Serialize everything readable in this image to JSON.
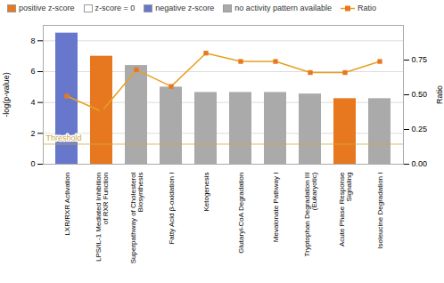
{
  "chart_data": {
    "type": "bar",
    "categories": [
      "LXR/RXR Activation",
      "LPS/IL-1 Mediated Inhibition\nof RXR Function",
      "Superpathway of Cholesterol\nBiosynthesis",
      "Fatty Acid β-oxidation I",
      "Ketogenesis",
      "Glutaryl-CoA Degradation",
      "Mevalonate Pathway I",
      "Tryptophan Degradation III\n(Eukaryotic)",
      "Acute Phase Response\nSignaling",
      "Isoleucine Degradation I"
    ],
    "series": [
      {
        "type": "bar",
        "values": [
          8.5,
          7.0,
          6.4,
          5.0,
          4.65,
          4.65,
          4.65,
          4.55,
          4.25,
          4.25
        ],
        "colors": [
          "#6677cc",
          "#e87820",
          "#aaaaaa",
          "#aaaaaa",
          "#aaaaaa",
          "#aaaaaa",
          "#aaaaaa",
          "#aaaaaa",
          "#e87820",
          "#aaaaaa"
        ]
      },
      {
        "name": "Ratio",
        "type": "line",
        "axis": "y2",
        "color": "#e8a020",
        "marker": "square",
        "marker_color": "#e87820",
        "values": [
          0.49,
          0.38,
          0.68,
          0.56,
          0.8,
          0.74,
          0.74,
          0.66,
          0.66,
          0.74
        ]
      }
    ],
    "legend_entries": [
      {
        "name": "positive z-score",
        "color": "#e87820"
      },
      {
        "name": "z-score = 0",
        "color": "#ffffff"
      },
      {
        "name": "negative z-score",
        "color": "#6677cc"
      },
      {
        "name": "no activity pattern available",
        "color": "#aaaaaa"
      }
    ],
    "legend": "upper left",
    "threshold": {
      "value": 1.3,
      "label": "Threshold",
      "color": "#ccaa44"
    },
    "ylabel": "-log(p-value)",
    "ylim": [
      0,
      9.0
    ],
    "yticks": [
      0,
      2,
      4,
      6,
      8
    ],
    "y2label": "Ratio",
    "y2lim": [
      0,
      1.0
    ],
    "y2ticks": [
      {
        "value": 0.0,
        "label": "0.00"
      },
      0.25,
      {
        "value": 0.5,
        "label": "0.50"
      },
      0.75
    ],
    "grid": true
  }
}
